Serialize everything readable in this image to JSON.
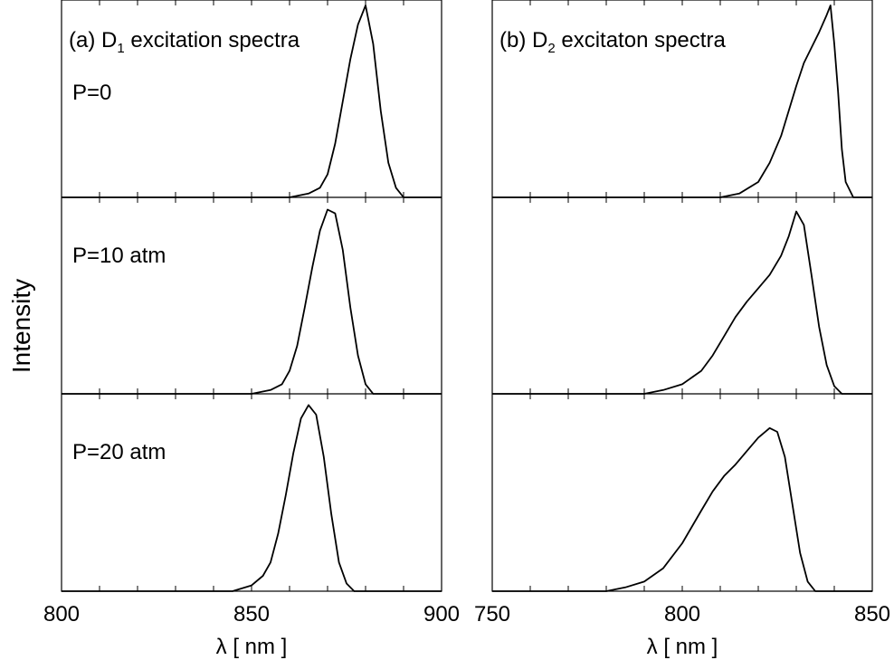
{
  "figure": {
    "ylabel": "Intensity"
  },
  "chart_data": [
    {
      "type": "line",
      "column": "left",
      "xlabel": "λ [ nm ]",
      "xlim": [
        800,
        900
      ],
      "xticks": [
        800,
        850,
        900
      ],
      "ylabel": "Intensity",
      "panels": [
        {
          "title_prefix": "(a) D",
          "title_sub": "1",
          "title_suffix": " excitation spectra",
          "label": "P=0",
          "series": [
            {
              "x": [
                860,
                865,
                868,
                870,
                872,
                874,
                876,
                878,
                880,
                882,
                884,
                886,
                888,
                890
              ],
              "y": [
                0.0,
                0.02,
                0.05,
                0.12,
                0.28,
                0.5,
                0.72,
                0.9,
                1.0,
                0.8,
                0.45,
                0.18,
                0.05,
                0.0
              ]
            }
          ]
        },
        {
          "title_prefix": "",
          "title_sub": "",
          "title_suffix": "",
          "label": "P=10 atm",
          "series": [
            {
              "x": [
                850,
                855,
                858,
                860,
                862,
                864,
                866,
                868,
                870,
                872,
                874,
                876,
                878,
                880,
                882
              ],
              "y": [
                0.0,
                0.02,
                0.05,
                0.12,
                0.25,
                0.45,
                0.66,
                0.85,
                0.96,
                0.94,
                0.75,
                0.45,
                0.2,
                0.05,
                0.0
              ]
            }
          ]
        },
        {
          "title_prefix": "",
          "title_sub": "",
          "title_suffix": "",
          "label": "P=20 atm",
          "series": [
            {
              "x": [
                845,
                850,
                853,
                855,
                857,
                859,
                861,
                863,
                865,
                867,
                869,
                871,
                873,
                875,
                877
              ],
              "y": [
                0.0,
                0.03,
                0.08,
                0.15,
                0.3,
                0.5,
                0.72,
                0.9,
                0.97,
                0.92,
                0.7,
                0.4,
                0.15,
                0.04,
                0.0
              ]
            }
          ]
        }
      ]
    },
    {
      "type": "line",
      "column": "right",
      "xlabel": "λ [ nm ]",
      "xlim": [
        750,
        850
      ],
      "xticks": [
        750,
        800,
        850
      ],
      "panels": [
        {
          "title_prefix": "(b) D",
          "title_sub": "2",
          "title_suffix": " excitaton spectra",
          "label": "",
          "series": [
            {
              "x": [
                810,
                815,
                820,
                823,
                826,
                828,
                830,
                832,
                834,
                836,
                838,
                839,
                840,
                841,
                842,
                843,
                845
              ],
              "y": [
                0.0,
                0.02,
                0.08,
                0.18,
                0.32,
                0.45,
                0.58,
                0.7,
                0.78,
                0.86,
                0.95,
                1.0,
                0.8,
                0.55,
                0.25,
                0.08,
                0.0
              ]
            }
          ]
        },
        {
          "title_prefix": "",
          "title_sub": "",
          "title_suffix": "",
          "label": "",
          "series": [
            {
              "x": [
                790,
                795,
                800,
                805,
                808,
                811,
                814,
                817,
                820,
                823,
                826,
                828,
                830,
                832,
                834,
                836,
                838,
                840,
                842
              ],
              "y": [
                0.0,
                0.02,
                0.05,
                0.12,
                0.2,
                0.3,
                0.4,
                0.48,
                0.55,
                0.62,
                0.72,
                0.82,
                0.95,
                0.88,
                0.62,
                0.35,
                0.15,
                0.04,
                0.0
              ]
            }
          ]
        },
        {
          "title_prefix": "",
          "title_sub": "",
          "title_suffix": "",
          "label": "",
          "series": [
            {
              "x": [
                780,
                785,
                790,
                795,
                800,
                805,
                808,
                811,
                814,
                817,
                820,
                823,
                825,
                827,
                829,
                831,
                833,
                835
              ],
              "y": [
                0.0,
                0.02,
                0.05,
                0.12,
                0.25,
                0.42,
                0.52,
                0.6,
                0.66,
                0.73,
                0.8,
                0.85,
                0.83,
                0.7,
                0.45,
                0.2,
                0.05,
                0.0
              ]
            }
          ]
        }
      ]
    }
  ]
}
